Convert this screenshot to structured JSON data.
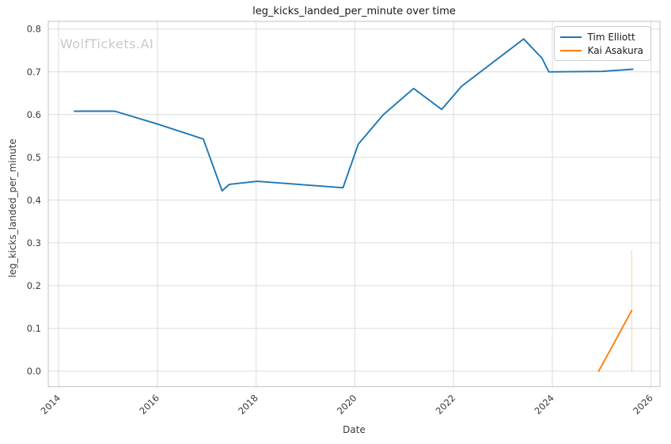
{
  "watermark": {
    "text": "WolfTickets.AI",
    "color": "#c9c9c9"
  },
  "colors": {
    "background": "#ffffff",
    "grid": "#dcdcdc",
    "spine": "#cccccc",
    "tick_text": "#3b3b3b",
    "title_text": "#1a1a1a",
    "series_blue": "#1f77b4",
    "series_orange": "#ff7f0e"
  },
  "chart_data": {
    "type": "line",
    "title": "leg_kicks_landed_per_minute over time",
    "xlabel": "Date",
    "ylabel": "leg_kicks_landed_per_minute",
    "grid": true,
    "legend_position": "upper right",
    "xlim": [
      2013.79,
      2026.18
    ],
    "ylim": [
      -0.036,
      0.818
    ],
    "xticks": [
      2014,
      2016,
      2018,
      2020,
      2022,
      2024,
      2026
    ],
    "xtick_labels": [
      "2014",
      "2016",
      "2018",
      "2020",
      "2022",
      "2024",
      "2026"
    ],
    "yticks": [
      0.0,
      0.1,
      0.2,
      0.3,
      0.4,
      0.5,
      0.6,
      0.7,
      0.8
    ],
    "ytick_labels": [
      "0.0",
      "0.1",
      "0.2",
      "0.3",
      "0.4",
      "0.5",
      "0.6",
      "0.7",
      "0.8"
    ],
    "series": [
      {
        "name": "Tim Elliott",
        "color": "#1f77b4",
        "x": [
          2014.32,
          2015.14,
          2016.0,
          2016.93,
          2017.31,
          2017.46,
          2018.02,
          2019.76,
          2020.07,
          2020.58,
          2021.19,
          2021.76,
          2022.16,
          2023.42,
          2023.79,
          2023.93,
          2025.0,
          2025.63
        ],
        "y": [
          0.608,
          0.608,
          0.578,
          0.543,
          0.422,
          0.437,
          0.444,
          0.429,
          0.531,
          0.6,
          0.661,
          0.612,
          0.666,
          0.777,
          0.732,
          0.7,
          0.701,
          0.706
        ]
      },
      {
        "name": "Kai Asakura",
        "color": "#ff7f0e",
        "x": [
          2024.94,
          2025.61
        ],
        "y": [
          0.0,
          0.142
        ],
        "last_point_vertical_band": {
          "x": 2025.61,
          "y_low": 0.0,
          "y_high": 0.284,
          "opacity": 0.3
        }
      }
    ]
  }
}
